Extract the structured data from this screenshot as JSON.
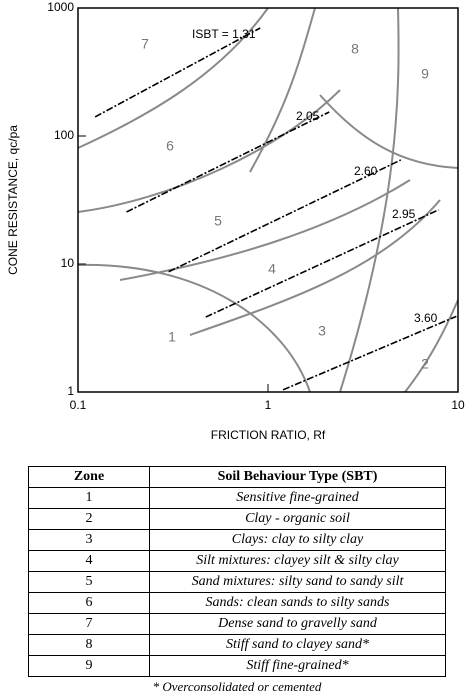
{
  "chart_data": {
    "type": "line",
    "x_label": "FRICTION RATIO, Rf",
    "y_label": "CONE RESISTANCE, qc/pa",
    "log_x": true,
    "log_y": true,
    "xlim": [
      0.1,
      10
    ],
    "ylim": [
      1,
      1000
    ],
    "xticks": [
      0.1,
      1,
      10
    ],
    "yticks": [
      1,
      10,
      100,
      1000
    ],
    "zones": [
      "1",
      "2",
      "3",
      "4",
      "5",
      "6",
      "7",
      "8",
      "9"
    ],
    "series": [
      {
        "name": "ISBT = 1.31",
        "color": "#000000",
        "x": [
          0.123,
          0.91
        ],
        "values": [
          141,
          698
        ]
      },
      {
        "name": "2.05",
        "color": "#000000",
        "x": [
          0.18,
          2.1
        ],
        "values": [
          25.5,
          154
        ]
      },
      {
        "name": "2.60",
        "color": "#000000",
        "x": [
          0.3,
          5.0
        ],
        "values": [
          8.7,
          65
        ]
      },
      {
        "name": "2.95",
        "color": "#000000",
        "x": [
          0.47,
          7.9
        ],
        "values": [
          3.85,
          26.5
        ]
      },
      {
        "name": "3.60",
        "color": "#000000",
        "x": [
          1.2,
          9.8
        ],
        "values": [
          1.04,
          3.9
        ]
      }
    ]
  },
  "table": {
    "header": [
      "Zone",
      "Soil Behaviour Type (SBT)"
    ],
    "rows": [
      [
        "1",
        "Sensitive fine-grained"
      ],
      [
        "2",
        "Clay - organic soil"
      ],
      [
        "3",
        "Clays: clay to silty clay"
      ],
      [
        "4",
        "Silt mixtures: clayey silt & silty clay"
      ],
      [
        "5",
        "Sand mixtures: silty sand to sandy silt"
      ],
      [
        "6",
        "Sands: clean sands to silty sands"
      ],
      [
        "7",
        "Dense sand to gravelly sand"
      ],
      [
        "8",
        "Stiff sand to clayey sand*"
      ],
      [
        "9",
        "Stiff fine-grained*"
      ]
    ],
    "footnote": "* Overconsolidated or cemented"
  }
}
